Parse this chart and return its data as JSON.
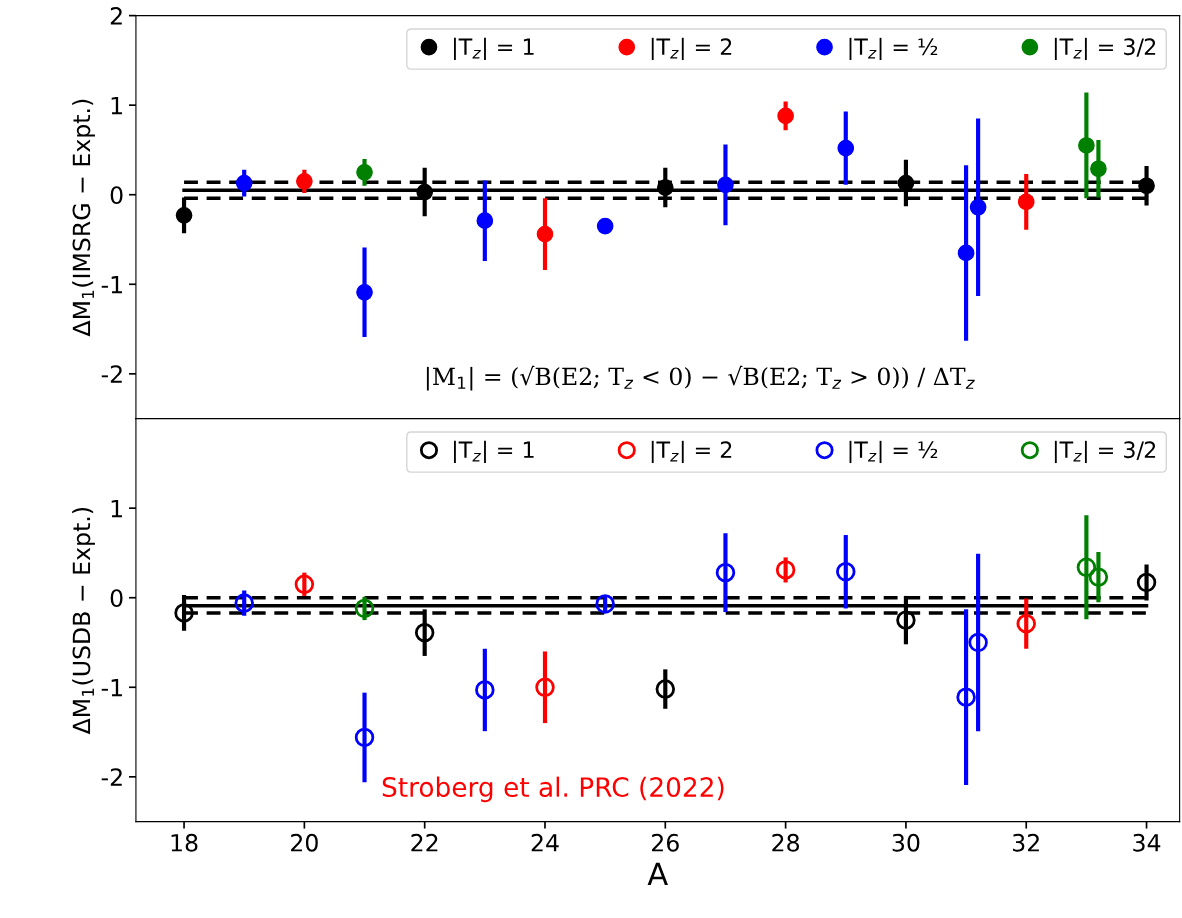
{
  "chart_data": [
    {
      "type": "scatter",
      "ylabel": "ΔM$_{1}$(IMSRG − Expt.)",
      "xlim": [
        17.2,
        34.55
      ],
      "ylim": [
        -2.5,
        2
      ],
      "yticks": [
        -2,
        -1,
        0,
        1,
        2
      ],
      "xticks": [
        18,
        20,
        22,
        24,
        26,
        28,
        30,
        32,
        34
      ],
      "tick_labels": "y",
      "legend": "top right",
      "marker": "circle",
      "grid": false,
      "annotations": [
        "|M$_{1}$| = (√B(E2; T$_{z}$ < 0) − √B(E2; T$_{z}$ > 0)) / ΔT$_{z}$"
      ],
      "series": [
        {
          "name": "|T$_{z}$| = 1",
          "color": "#000000",
          "x": [
            18,
            22,
            26,
            30,
            34
          ],
          "values": [
            -0.23,
            0.03,
            0.08,
            0.13,
            0.1
          ],
          "errors": [
            0.2,
            0.27,
            0.22,
            0.26,
            0.22
          ]
        },
        {
          "name": "|T$_{z}$| = 2",
          "color": "#ff0000",
          "x": [
            20,
            24,
            28,
            32
          ],
          "values": [
            0.15,
            -0.44,
            0.88,
            -0.08
          ],
          "errors": [
            0.13,
            0.4,
            0.16,
            0.31
          ]
        },
        {
          "name": "|T$_{z}$| = ½",
          "color": "#0000ff",
          "x": [
            19,
            21,
            23,
            25,
            27,
            29,
            31,
            31.2
          ],
          "values": [
            0.13,
            -1.09,
            -0.29,
            -0.35,
            0.11,
            0.52,
            -0.65,
            -0.14
          ],
          "errors": [
            0.15,
            0.5,
            0.45,
            null,
            0.45,
            0.41,
            0.98,
            0.99
          ]
        },
        {
          "name": "|T$_{z}$| = 3/2",
          "color": "#008000",
          "x": [
            21,
            33,
            33.2
          ],
          "values": [
            0.25,
            0.55,
            0.29
          ],
          "errors": [
            0.15,
            0.59,
            0.32
          ]
        },
        {
          "type": "line",
          "marker": "none",
          "color": "#000000",
          "line_style": "solid",
          "x": [
            18,
            34
          ],
          "values": [
            0.05,
            0.05
          ]
        },
        {
          "type": "line",
          "marker": "none",
          "color": "#000000",
          "line_style": "dashed",
          "x": [
            18,
            34
          ],
          "values": [
            0.14,
            0.14
          ]
        },
        {
          "type": "line",
          "marker": "none",
          "color": "#000000",
          "line_style": "dashed",
          "x": [
            18,
            34
          ],
          "values": [
            -0.04,
            -0.04
          ]
        }
      ]
    },
    {
      "type": "scatter",
      "xlabel": "A",
      "ylabel": "ΔM$_{1}$(USDB − Expt.)",
      "xlim": [
        17.2,
        34.55
      ],
      "ylim": [
        -2.5,
        2
      ],
      "yticks": [
        -2,
        -1,
        0,
        1
      ],
      "xticks": [
        18,
        20,
        22,
        24,
        26,
        28,
        30,
        32,
        34
      ],
      "legend": "top right",
      "marker": "circle",
      "grid": false,
      "annotations": [
        "Stroberg et al. PRC (2022)"
      ],
      "series": [
        {
          "name": "|T$_{z}$| = 1",
          "color": "#000000",
          "x": [
            18,
            22,
            26,
            30,
            34
          ],
          "values": [
            -0.17,
            -0.39,
            -1.02,
            -0.25,
            0.17
          ],
          "errors": [
            0.2,
            0.26,
            0.22,
            0.27,
            0.2
          ]
        },
        {
          "name": "|T$_{z}$| = 2",
          "color": "#ff0000",
          "x": [
            20,
            24,
            28,
            32
          ],
          "values": [
            0.15,
            -1.0,
            0.31,
            -0.29
          ],
          "errors": [
            0.13,
            0.4,
            0.14,
            0.28
          ]
        },
        {
          "name": "|T$_{z}$| = ½",
          "color": "#0000ff",
          "x": [
            19,
            21,
            23,
            25,
            27,
            29,
            31,
            31.2
          ],
          "values": [
            -0.06,
            -1.56,
            -1.03,
            -0.07,
            0.28,
            0.29,
            -1.11,
            -0.5
          ],
          "errors": [
            0.14,
            0.5,
            0.46,
            0.1,
            0.44,
            0.41,
            0.98,
            0.99
          ]
        },
        {
          "name": "|T$_{z}$| = 3/2",
          "color": "#008000",
          "x": [
            21,
            33,
            33.2
          ],
          "values": [
            -0.12,
            0.34,
            0.23
          ],
          "errors": [
            0.13,
            0.58,
            0.28
          ]
        },
        {
          "type": "line",
          "marker": "none",
          "color": "#000000",
          "line_style": "solid",
          "x": [
            18,
            34
          ],
          "values": [
            -0.09,
            -0.09
          ]
        },
        {
          "type": "line",
          "marker": "none",
          "color": "#000000",
          "line_style": "dashed",
          "x": [
            18,
            34
          ],
          "values": [
            0.0,
            0.0
          ]
        },
        {
          "type": "line",
          "marker": "none",
          "color": "#000000",
          "line_style": "dashed",
          "x": [
            18,
            34
          ],
          "values": [
            -0.17,
            -0.17
          ]
        }
      ]
    }
  ]
}
